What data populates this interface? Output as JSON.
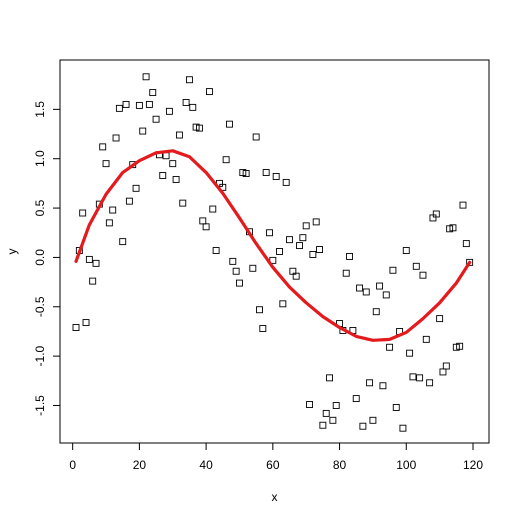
{
  "chart_data": {
    "type": "scatter",
    "title": "",
    "xlabel": "x",
    "ylabel": "y",
    "xlim": [
      -3.8,
      124.8
    ],
    "ylim": [
      -1.88,
      2.0
    ],
    "xticks": [
      0,
      20,
      40,
      60,
      80,
      100,
      120
    ],
    "yticks": [
      -1.5,
      -1.0,
      -0.5,
      0.0,
      0.5,
      1.0,
      1.5
    ],
    "xtick_labels": [
      "0",
      "20",
      "40",
      "60",
      "80",
      "100",
      "120"
    ],
    "ytick_labels": [
      "-1.5",
      "-1.0",
      "-0.5",
      "0.0",
      "0.5",
      "1.0",
      "1.5"
    ],
    "grid": false,
    "point_marker": "open-square",
    "line_color": "#e41a1c",
    "points": [
      [
        1,
        -0.71
      ],
      [
        2,
        0.07
      ],
      [
        3,
        0.45
      ],
      [
        4,
        -0.66
      ],
      [
        5,
        -0.02
      ],
      [
        6,
        -0.24
      ],
      [
        7,
        -0.06
      ],
      [
        8,
        0.54
      ],
      [
        9,
        1.12
      ],
      [
        10,
        0.95
      ],
      [
        11,
        0.35
      ],
      [
        12,
        0.48
      ],
      [
        13,
        1.21
      ],
      [
        14,
        1.51
      ],
      [
        15,
        0.16
      ],
      [
        16,
        1.55
      ],
      [
        17,
        0.57
      ],
      [
        18,
        0.94
      ],
      [
        19,
        0.7
      ],
      [
        20,
        1.54
      ],
      [
        21,
        1.28
      ],
      [
        22,
        1.83
      ],
      [
        23,
        1.55
      ],
      [
        24,
        1.67
      ],
      [
        25,
        1.4
      ],
      [
        26,
        1.04
      ],
      [
        27,
        0.83
      ],
      [
        28,
        1.03
      ],
      [
        29,
        1.48
      ],
      [
        30,
        0.95
      ],
      [
        31,
        0.79
      ],
      [
        32,
        1.24
      ],
      [
        33,
        0.55
      ],
      [
        34,
        1.57
      ],
      [
        35,
        1.8
      ],
      [
        36,
        1.52
      ],
      [
        37,
        1.32
      ],
      [
        38,
        1.31
      ],
      [
        39,
        0.37
      ],
      [
        40,
        0.31
      ],
      [
        41,
        1.68
      ],
      [
        42,
        0.49
      ],
      [
        43,
        0.07
      ],
      [
        44,
        0.75
      ],
      [
        45,
        0.71
      ],
      [
        46,
        0.99
      ],
      [
        47,
        1.35
      ],
      [
        48,
        -0.04
      ],
      [
        49,
        -0.14
      ],
      [
        50,
        -0.26
      ],
      [
        51,
        0.86
      ],
      [
        52,
        0.85
      ],
      [
        53,
        0.26
      ],
      [
        54,
        -0.11
      ],
      [
        55,
        1.22
      ],
      [
        56,
        -0.53
      ],
      [
        57,
        -0.72
      ],
      [
        58,
        0.86
      ],
      [
        59,
        0.25
      ],
      [
        60,
        -0.03
      ],
      [
        61,
        0.82
      ],
      [
        62,
        0.06
      ],
      [
        63,
        -0.47
      ],
      [
        64,
        0.76
      ],
      [
        65,
        0.18
      ],
      [
        66,
        -0.14
      ],
      [
        67,
        -0.19
      ],
      [
        68,
        0.12
      ],
      [
        69,
        0.2
      ],
      [
        70,
        0.32
      ],
      [
        71,
        -1.49
      ],
      [
        72,
        0.03
      ],
      [
        73,
        0.36
      ],
      [
        74,
        0.08
      ],
      [
        75,
        -1.7
      ],
      [
        76,
        -1.58
      ],
      [
        77,
        -1.22
      ],
      [
        78,
        -1.65
      ],
      [
        79,
        -1.5
      ],
      [
        80,
        -0.67
      ],
      [
        81,
        -0.74
      ],
      [
        82,
        -0.16
      ],
      [
        83,
        0.01
      ],
      [
        84,
        -0.74
      ],
      [
        85,
        -1.43
      ],
      [
        86,
        -0.31
      ],
      [
        87,
        -1.71
      ],
      [
        88,
        -0.35
      ],
      [
        89,
        -1.27
      ],
      [
        90,
        -1.65
      ],
      [
        91,
        -0.55
      ],
      [
        92,
        -0.29
      ],
      [
        93,
        -1.3
      ],
      [
        94,
        -0.38
      ],
      [
        95,
        -0.91
      ],
      [
        96,
        -0.13
      ],
      [
        97,
        -1.52
      ],
      [
        98,
        -0.75
      ],
      [
        99,
        -1.73
      ],
      [
        100,
        0.07
      ],
      [
        101,
        -0.97
      ],
      [
        102,
        -1.21
      ],
      [
        103,
        -0.09
      ],
      [
        104,
        -1.22
      ],
      [
        105,
        -0.18
      ],
      [
        106,
        -0.83
      ],
      [
        107,
        -1.27
      ],
      [
        108,
        0.4
      ],
      [
        109,
        0.44
      ],
      [
        110,
        -0.62
      ],
      [
        111,
        -1.16
      ],
      [
        112,
        -1.1
      ],
      [
        113,
        0.29
      ],
      [
        114,
        0.3
      ],
      [
        115,
        -0.91
      ],
      [
        116,
        -0.9
      ],
      [
        117,
        0.53
      ],
      [
        118,
        0.14
      ],
      [
        119,
        -0.05
      ]
    ],
    "smooth_line": {
      "x": [
        1,
        5,
        10,
        15,
        20,
        25,
        30,
        35,
        40,
        45,
        50,
        55,
        60,
        65,
        70,
        75,
        80,
        85,
        90,
        95,
        100,
        105,
        110,
        115,
        119
      ],
      "y": [
        -0.04,
        0.33,
        0.64,
        0.86,
        0.98,
        1.06,
        1.08,
        1.02,
        0.86,
        0.65,
        0.4,
        0.14,
        -0.1,
        -0.3,
        -0.46,
        -0.6,
        -0.71,
        -0.8,
        -0.84,
        -0.83,
        -0.76,
        -0.62,
        -0.46,
        -0.26,
        -0.05
      ]
    }
  }
}
